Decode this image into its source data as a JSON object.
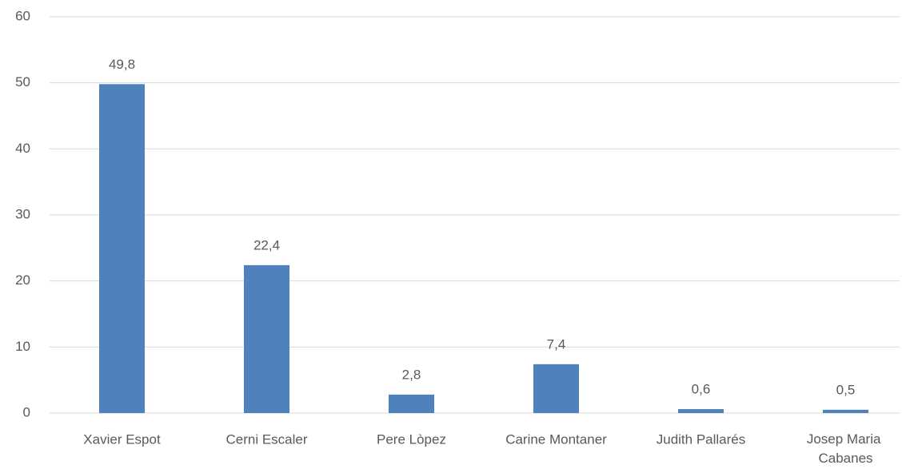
{
  "chart_data": {
    "type": "bar",
    "categories": [
      "Xavier Espot",
      "Cerni Escaler",
      "Pere Lòpez",
      "Carine Montaner",
      "Judith Pallarés",
      "Josep Maria Cabanes"
    ],
    "values": [
      49.8,
      22.4,
      2.8,
      7.4,
      0.6,
      0.5
    ],
    "value_labels": [
      "49,8",
      "22,4",
      "2,8",
      "7,4",
      "0,6",
      "0,5"
    ],
    "color": "#4f81bd",
    "ylim": [
      0,
      60
    ],
    "yticks": [
      0,
      10,
      20,
      30,
      40,
      50,
      60
    ],
    "grid": true
  }
}
